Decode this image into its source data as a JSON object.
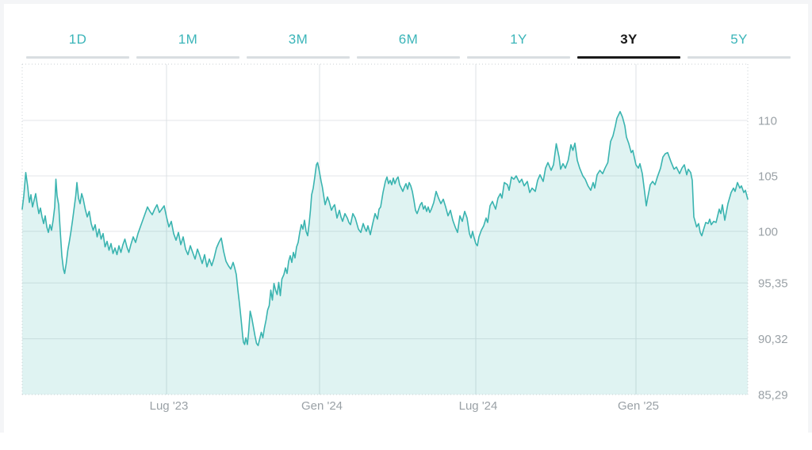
{
  "page": {
    "background": "#ffffff",
    "frame_color": "#f4f5f7"
  },
  "range_tabs": {
    "items": [
      {
        "label": "1D",
        "active": false
      },
      {
        "label": "1M",
        "active": false
      },
      {
        "label": "3M",
        "active": false
      },
      {
        "label": "6M",
        "active": false
      },
      {
        "label": "1Y",
        "active": false
      },
      {
        "label": "3Y",
        "active": true
      },
      {
        "label": "5Y",
        "active": false
      }
    ],
    "inactive_color": "#3bb5b9",
    "active_color": "#1a1a1a",
    "inactive_underline_color": "#d9dee1",
    "active_underline_color": "#1a1a1a"
  },
  "chart_data": {
    "type": "area",
    "title": "",
    "xlabel": "",
    "ylabel": "",
    "grid": true,
    "legend": false,
    "line_color": "#3ab4b0",
    "fill_color": "rgba(58,180,175,0.16)",
    "h_grid_color": "#e3e6e8",
    "v_grid_color": "#dde1e4",
    "border_color": "#c9cfd3",
    "label_color": "#9aa1a6",
    "y_axis": {
      "min": 85.29,
      "max": 115.07,
      "ticks": [
        {
          "value": 110,
          "label": "110"
        },
        {
          "value": 105,
          "label": "105"
        },
        {
          "value": 100,
          "label": "100"
        },
        {
          "value": 95.35,
          "label": "95,35"
        },
        {
          "value": 90.32,
          "label": "90,32"
        },
        {
          "value": 85.29,
          "label": "85,29"
        }
      ]
    },
    "x_axis": {
      "ticks": [
        {
          "label": "Lug '23",
          "px": 210
        },
        {
          "label": "Gen '24",
          "px": 403
        },
        {
          "label": "Lug '24",
          "px": 600
        },
        {
          "label": "Gen '25",
          "px": 802
        }
      ]
    },
    "points": [
      [
        28,
        102.0
      ],
      [
        30,
        103.2
      ],
      [
        32.5,
        105.3
      ],
      [
        35,
        104.0
      ],
      [
        37,
        102.6
      ],
      [
        39,
        103.3
      ],
      [
        41,
        102.2
      ],
      [
        43,
        102.8
      ],
      [
        45,
        103.4
      ],
      [
        47,
        102.4
      ],
      [
        49,
        101.6
      ],
      [
        51,
        102.1
      ],
      [
        53,
        101.3
      ],
      [
        55,
        100.7
      ],
      [
        57,
        101.4
      ],
      [
        59,
        100.4
      ],
      [
        61,
        99.9
      ],
      [
        63,
        100.6
      ],
      [
        65,
        100.1
      ],
      [
        67,
        101.0
      ],
      [
        69,
        102.2
      ],
      [
        70.5,
        104.7
      ],
      [
        72,
        103.2
      ],
      [
        74,
        102.4
      ],
      [
        76,
        100.0
      ],
      [
        78,
        97.8
      ],
      [
        80,
        96.6
      ],
      [
        81.5,
        96.2
      ],
      [
        83.5,
        97.1
      ],
      [
        85.5,
        98.3
      ],
      [
        87.5,
        99.1
      ],
      [
        89.5,
        100.0
      ],
      [
        91.5,
        101.0
      ],
      [
        93.5,
        102.1
      ],
      [
        95.5,
        103.2
      ],
      [
        97,
        104.4
      ],
      [
        99,
        103.0
      ],
      [
        101,
        102.5
      ],
      [
        103,
        103.4
      ],
      [
        105,
        102.9
      ],
      [
        107.5,
        102.0
      ],
      [
        110,
        101.3
      ],
      [
        112.5,
        101.8
      ],
      [
        115,
        100.7
      ],
      [
        117.5,
        100.1
      ],
      [
        120,
        100.6
      ],
      [
        122.5,
        99.5
      ],
      [
        125,
        100.2
      ],
      [
        127.5,
        99.3
      ],
      [
        130,
        99.8
      ],
      [
        132.5,
        98.6
      ],
      [
        135,
        99.1
      ],
      [
        137.5,
        98.3
      ],
      [
        140,
        98.9
      ],
      [
        142.5,
        98.0
      ],
      [
        145,
        98.5
      ],
      [
        147.5,
        97.9
      ],
      [
        150,
        98.7
      ],
      [
        152.5,
        98.1
      ],
      [
        155,
        98.8
      ],
      [
        157.5,
        99.3
      ],
      [
        160,
        98.6
      ],
      [
        162.5,
        98.1
      ],
      [
        165,
        98.8
      ],
      [
        168,
        99.5
      ],
      [
        171,
        99.0
      ],
      [
        174,
        99.8
      ],
      [
        177,
        100.4
      ],
      [
        180,
        101.0
      ],
      [
        183,
        101.6
      ],
      [
        186,
        102.2
      ],
      [
        189,
        101.8
      ],
      [
        192,
        101.5
      ],
      [
        195,
        102.0
      ],
      [
        198,
        102.4
      ],
      [
        201,
        101.7
      ],
      [
        204,
        102.0
      ],
      [
        207,
        102.3
      ],
      [
        210,
        101.3
      ],
      [
        213,
        100.4
      ],
      [
        216,
        100.9
      ],
      [
        219,
        99.8
      ],
      [
        222,
        99.2
      ],
      [
        225,
        99.9
      ],
      [
        228,
        98.8
      ],
      [
        231,
        99.5
      ],
      [
        234,
        98.4
      ],
      [
        237,
        97.9
      ],
      [
        240,
        98.7
      ],
      [
        243,
        98.1
      ],
      [
        246,
        97.5
      ],
      [
        249,
        98.4
      ],
      [
        252,
        97.8
      ],
      [
        255,
        97.1
      ],
      [
        258,
        97.9
      ],
      [
        261,
        96.8
      ],
      [
        264,
        97.5
      ],
      [
        267,
        96.9
      ],
      [
        270,
        97.6
      ],
      [
        273,
        98.5
      ],
      [
        276,
        99.0
      ],
      [
        279,
        99.4
      ],
      [
        282,
        98.2
      ],
      [
        285,
        97.3
      ],
      [
        288,
        96.9
      ],
      [
        291,
        96.6
      ],
      [
        294,
        97.2
      ],
      [
        296,
        96.7
      ],
      [
        298,
        96.1
      ],
      [
        300,
        94.7
      ],
      [
        302,
        93.5
      ],
      [
        304,
        92.1
      ],
      [
        306,
        90.6
      ],
      [
        307,
        90.0
      ],
      [
        308.5,
        89.8
      ],
      [
        310,
        90.4
      ],
      [
        312,
        89.8
      ],
      [
        313.5,
        90.9
      ],
      [
        315.5,
        92.8
      ],
      [
        317.5,
        92.2
      ],
      [
        319.5,
        91.4
      ],
      [
        321.5,
        90.6
      ],
      [
        323.5,
        89.9
      ],
      [
        325.5,
        89.7
      ],
      [
        327.5,
        90.3
      ],
      [
        329.5,
        90.9
      ],
      [
        331.5,
        90.4
      ],
      [
        333.5,
        91.3
      ],
      [
        335.5,
        92.0
      ],
      [
        337.5,
        92.9
      ],
      [
        339.5,
        93.3
      ],
      [
        341.5,
        94.7
      ],
      [
        343.5,
        93.8
      ],
      [
        345.5,
        95.3
      ],
      [
        347.5,
        94.7
      ],
      [
        349.5,
        94.3
      ],
      [
        351.5,
        95.4
      ],
      [
        353.5,
        94.2
      ],
      [
        355.5,
        95.7
      ],
      [
        358,
        96.1
      ],
      [
        360,
        96.7
      ],
      [
        362,
        96.2
      ],
      [
        364,
        97.3
      ],
      [
        366,
        97.8
      ],
      [
        368,
        97.2
      ],
      [
        370,
        98.1
      ],
      [
        372,
        97.6
      ],
      [
        374,
        98.6
      ],
      [
        376,
        99.0
      ],
      [
        378,
        99.9
      ],
      [
        380,
        100.6
      ],
      [
        382,
        100.2
      ],
      [
        384,
        101.0
      ],
      [
        386,
        100.0
      ],
      [
        388,
        99.6
      ],
      [
        390,
        100.8
      ],
      [
        391.5,
        101.9
      ],
      [
        393,
        103.3
      ],
      [
        395,
        103.9
      ],
      [
        397,
        104.9
      ],
      [
        399,
        106.0
      ],
      [
        400.5,
        106.2
      ],
      [
        402,
        105.7
      ],
      [
        403.5,
        105.1
      ],
      [
        405,
        104.5
      ],
      [
        406.5,
        104.0
      ],
      [
        408,
        103.3
      ],
      [
        410,
        102.4
      ],
      [
        413,
        103.1
      ],
      [
        415,
        102.7
      ],
      [
        418,
        101.9
      ],
      [
        420,
        102.2
      ],
      [
        422,
        102.4
      ],
      [
        425,
        101.2
      ],
      [
        428,
        101.9
      ],
      [
        430,
        101.3
      ],
      [
        432,
        100.9
      ],
      [
        435,
        101.6
      ],
      [
        438,
        101.2
      ],
      [
        440,
        100.8
      ],
      [
        442,
        100.6
      ],
      [
        445,
        101.6
      ],
      [
        448,
        101.2
      ],
      [
        452,
        100.2
      ],
      [
        455,
        99.9
      ],
      [
        458,
        100.7
      ],
      [
        460,
        100.3
      ],
      [
        462,
        100.0
      ],
      [
        464,
        100.5
      ],
      [
        467,
        99.7
      ],
      [
        470,
        100.7
      ],
      [
        473,
        101.6
      ],
      [
        476,
        101.1
      ],
      [
        478,
        102.0
      ],
      [
        480,
        102.2
      ],
      [
        483,
        103.5
      ],
      [
        486,
        104.5
      ],
      [
        488,
        104.9
      ],
      [
        490,
        104.3
      ],
      [
        492,
        104.6
      ],
      [
        494,
        104.2
      ],
      [
        496,
        104.8
      ],
      [
        498,
        104.3
      ],
      [
        500,
        104.7
      ],
      [
        502,
        104.9
      ],
      [
        504,
        104.2
      ],
      [
        506,
        103.9
      ],
      [
        508,
        103.6
      ],
      [
        510,
        104.0
      ],
      [
        512,
        104.3
      ],
      [
        514,
        103.8
      ],
      [
        516,
        104.4
      ],
      [
        518,
        104.1
      ],
      [
        520,
        103.6
      ],
      [
        522,
        102.8
      ],
      [
        524,
        101.9
      ],
      [
        526,
        101.6
      ],
      [
        528,
        102.0
      ],
      [
        530,
        102.4
      ],
      [
        532,
        102.6
      ],
      [
        534,
        102.0
      ],
      [
        536,
        102.3
      ],
      [
        538,
        101.8
      ],
      [
        540,
        102.2
      ],
      [
        542,
        101.7
      ],
      [
        544,
        102.0
      ],
      [
        547,
        102.6
      ],
      [
        550,
        103.6
      ],
      [
        553,
        103.0
      ],
      [
        556,
        102.5
      ],
      [
        559,
        102.9
      ],
      [
        562,
        102.2
      ],
      [
        565,
        101.4
      ],
      [
        568,
        101.9
      ],
      [
        571,
        101.0
      ],
      [
        574,
        100.4
      ],
      [
        577,
        99.9
      ],
      [
        580,
        101.4
      ],
      [
        583,
        100.9
      ],
      [
        586,
        101.8
      ],
      [
        589,
        101.2
      ],
      [
        592,
        99.8
      ],
      [
        594,
        99.4
      ],
      [
        596,
        100.0
      ],
      [
        598,
        99.4
      ],
      [
        600,
        98.9
      ],
      [
        602,
        98.7
      ],
      [
        604,
        99.5
      ],
      [
        607,
        100.1
      ],
      [
        610,
        100.5
      ],
      [
        613,
        101.2
      ],
      [
        615,
        100.8
      ],
      [
        618,
        102.3
      ],
      [
        621,
        102.7
      ],
      [
        625,
        102.0
      ],
      [
        628,
        103.0
      ],
      [
        631,
        103.4
      ],
      [
        633,
        103.0
      ],
      [
        636,
        104.4
      ],
      [
        640,
        104.2
      ],
      [
        642,
        103.7
      ],
      [
        645,
        104.9
      ],
      [
        648,
        104.7
      ],
      [
        651,
        105.0
      ],
      [
        655,
        104.4
      ],
      [
        658,
        104.7
      ],
      [
        661,
        104.1
      ],
      [
        665,
        104.5
      ],
      [
        668,
        103.5
      ],
      [
        671,
        103.9
      ],
      [
        675,
        103.6
      ],
      [
        678,
        104.6
      ],
      [
        681,
        105.1
      ],
      [
        685,
        104.5
      ],
      [
        688,
        105.7
      ],
      [
        691,
        106.2
      ],
      [
        695,
        105.5
      ],
      [
        698,
        106.0
      ],
      [
        701.5,
        107.9
      ],
      [
        705,
        106.7
      ],
      [
        707,
        105.6
      ],
      [
        710,
        106.1
      ],
      [
        713,
        105.7
      ],
      [
        716.5,
        106.4
      ],
      [
        720,
        107.8
      ],
      [
        722.5,
        107.3
      ],
      [
        725,
        107.95
      ],
      [
        728,
        106.4
      ],
      [
        731,
        105.7
      ],
      [
        735,
        105.0
      ],
      [
        738,
        104.7
      ],
      [
        741.5,
        104.1
      ],
      [
        745,
        103.7
      ],
      [
        748,
        104.4
      ],
      [
        750,
        103.9
      ],
      [
        753,
        105.1
      ],
      [
        756.5,
        105.5
      ],
      [
        760,
        105.2
      ],
      [
        763,
        105.7
      ],
      [
        766.5,
        106.2
      ],
      [
        770,
        108.1
      ],
      [
        773,
        108.6
      ],
      [
        776,
        109.5
      ],
      [
        778,
        110.2
      ],
      [
        780,
        110.5
      ],
      [
        782,
        110.8
      ],
      [
        785,
        110.3
      ],
      [
        788,
        109.5
      ],
      [
        790,
        108.5
      ],
      [
        793,
        107.9
      ],
      [
        796,
        107.1
      ],
      [
        798,
        107.3
      ],
      [
        802,
        106.0
      ],
      [
        805,
        105.7
      ],
      [
        807,
        106.1
      ],
      [
        810,
        105.2
      ],
      [
        813,
        103.5
      ],
      [
        815,
        102.3
      ],
      [
        817,
        103.1
      ],
      [
        820,
        104.2
      ],
      [
        823,
        104.5
      ],
      [
        826,
        104.2
      ],
      [
        829,
        104.9
      ],
      [
        833,
        105.7
      ],
      [
        836,
        106.7
      ],
      [
        839,
        107.0
      ],
      [
        842,
        107.1
      ],
      [
        846,
        106.3
      ],
      [
        850,
        105.6
      ],
      [
        853,
        105.8
      ],
      [
        857,
        105.2
      ],
      [
        860,
        105.7
      ],
      [
        863,
        106.0
      ],
      [
        866,
        105.1
      ],
      [
        868,
        105.6
      ],
      [
        871,
        105.3
      ],
      [
        873,
        104.6
      ],
      [
        875,
        101.3
      ],
      [
        877,
        100.8
      ],
      [
        878.5,
        100.4
      ],
      [
        881,
        100.7
      ],
      [
        883,
        99.9
      ],
      [
        885,
        99.6
      ],
      [
        887,
        100.1
      ],
      [
        890,
        100.8
      ],
      [
        893,
        100.7
      ],
      [
        895,
        101.1
      ],
      [
        897,
        100.6
      ],
      [
        900,
        100.9
      ],
      [
        903,
        100.8
      ],
      [
        905,
        101.4
      ],
      [
        907,
        102.0
      ],
      [
        909,
        101.6
      ],
      [
        911,
        102.4
      ],
      [
        914,
        101.0
      ],
      [
        918,
        102.5
      ],
      [
        922,
        103.5
      ],
      [
        925,
        103.9
      ],
      [
        927,
        103.6
      ],
      [
        930,
        104.4
      ],
      [
        933,
        103.9
      ],
      [
        935,
        104.1
      ],
      [
        938,
        103.5
      ],
      [
        940,
        103.7
      ],
      [
        943,
        102.9
      ]
    ]
  }
}
